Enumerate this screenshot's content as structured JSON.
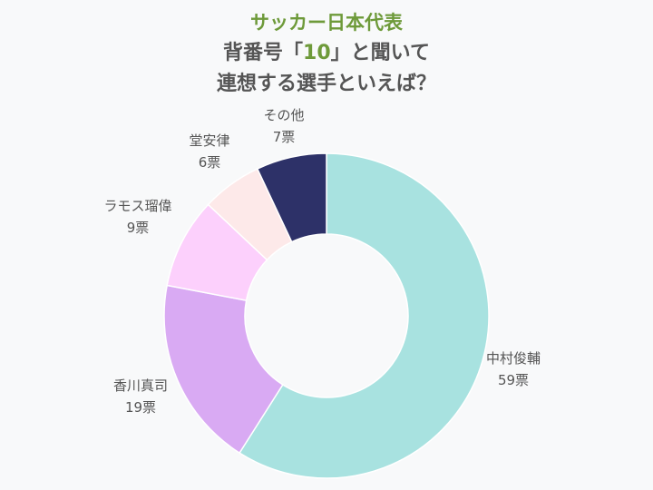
{
  "title": {
    "line1": "サッカー日本代表",
    "line2_before": "背番号「",
    "line2_accent": "10",
    "line2_after": "」と聞いて",
    "line3": "連想する選手といえば？"
  },
  "chart_data": {
    "type": "pie",
    "variant": "donut",
    "categories": [
      "中村俊輔",
      "香川真司",
      "ラモス瑠偉",
      "堂安律",
      "その他"
    ],
    "values": [
      59,
      19,
      9,
      6,
      7
    ],
    "value_labels": [
      "59票",
      "19票",
      "9票",
      "6票",
      "7票"
    ],
    "colors": [
      "#a8e2e0",
      "#d9aaf3",
      "#fcd0fc",
      "#fde9e9",
      "#2d3168"
    ],
    "start_angle": "12 o'clock",
    "direction": "clockwise",
    "legend": "none"
  }
}
